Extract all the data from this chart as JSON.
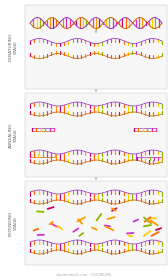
{
  "background": "#ffffff",
  "stages": [
    "DENATURING\nSTAGE",
    "ANNEALING\nSTAGE",
    "EXTENDING\nSTAGE"
  ],
  "base_colors": [
    "#cc0066",
    "#ff6600",
    "#ffcc00",
    "#88bb00",
    "#cc33cc",
    "#ff3399",
    "#ff9900"
  ],
  "strand_purple": "#9933cc",
  "strand_orange": "#cc6600",
  "box_face": "#f7f7f7",
  "box_edge": "#cccccc",
  "label_color": "#666666",
  "arrow_color": "#aaaaaa",
  "watermark": "shutterstock.com · 735785395"
}
